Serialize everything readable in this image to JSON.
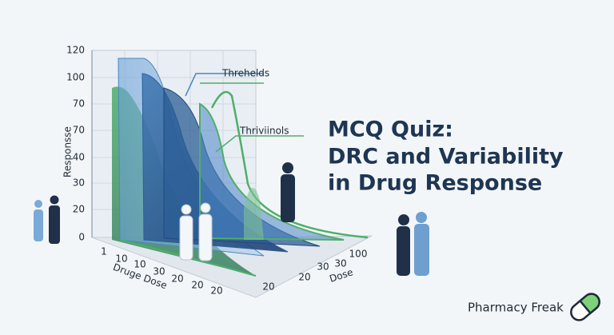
{
  "illustration": {
    "y_axis_label": "Responsse",
    "y_ticks": [
      "120",
      "100",
      "70",
      "70",
      "40",
      "30",
      "20",
      "0"
    ],
    "left_axis_label": "Druge Dose",
    "left_ticks": [
      "1",
      "10",
      "10",
      "30",
      "20",
      "20",
      "20"
    ],
    "right_axis_label": "Dose",
    "right_ticks": [
      "20",
      "20",
      "30",
      "30",
      "100"
    ],
    "callouts": [
      "Threhelds",
      "Thriviinols"
    ]
  },
  "title": [
    "MCQ Quiz:",
    "DRC and Variability",
    "in Drug Response"
  ],
  "brand": "Pharmacy Freak"
}
